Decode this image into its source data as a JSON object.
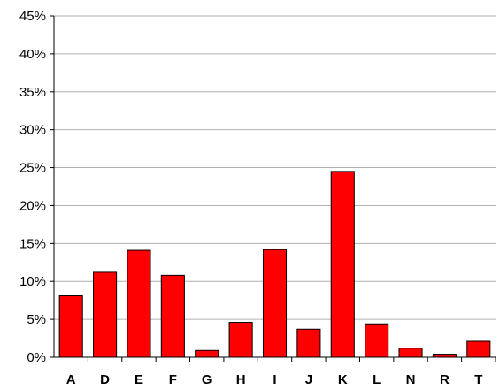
{
  "chart_data": {
    "type": "bar",
    "categories": [
      "A",
      "D",
      "E",
      "F",
      "G",
      "H",
      "I",
      "J",
      "K",
      "L",
      "N",
      "R",
      "T"
    ],
    "values": [
      8.1,
      11.2,
      14.1,
      10.8,
      0.9,
      4.6,
      14.2,
      3.7,
      24.5,
      4.4,
      1.2,
      0.4,
      2.1
    ],
    "ylim": [
      0,
      45
    ],
    "yticks": [
      "0%",
      "5%",
      "10%",
      "15%",
      "20%",
      "25%",
      "30%",
      "35%",
      "40%",
      "45%"
    ],
    "grid": true,
    "bar_color": "#ff0000",
    "title": "",
    "xlabel": "",
    "ylabel": ""
  }
}
